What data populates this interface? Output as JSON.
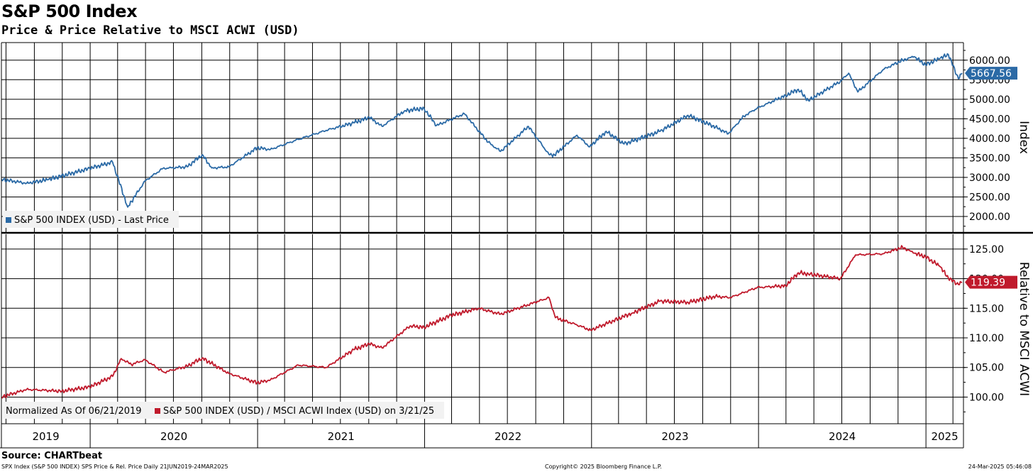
{
  "title": "S&P 500 Index",
  "subtitle": "Price & Price Relative to MSCI ACWI (USD)",
  "source": "Source: CHARTbeat",
  "footer": {
    "left": "SPX Index (S&P 500 INDEX) SPS Price & Rel. Price  Daily 21JUN2019-24MAR2025",
    "center": "Copyright© 2025 Bloomberg Finance L.P.",
    "right": "24-Mar-2025 05:46:08"
  },
  "colors": {
    "price": "#2b6aa6",
    "relative": "#c01a2c",
    "grid": "#000000"
  },
  "chart_data": [
    {
      "type": "line",
      "panel": "top",
      "ylabel": "Index",
      "ylim": [
        1600,
        6450
      ],
      "yticks": [
        2000,
        2500,
        3000,
        3500,
        4000,
        4500,
        5000,
        5500,
        6000
      ],
      "ytick_labels": [
        "2000.00",
        "2500.00",
        "3000.00",
        "3500.00",
        "4000.00",
        "4500.00",
        "5000.00",
        "5500.00",
        "6000.00"
      ],
      "legend": "S&P 500 INDEX (USD) - Last Price",
      "last_value_label": "5667.56",
      "last_value": 5667.56,
      "x": [
        "2019-06-21",
        "2019-08-15",
        "2019-10-01",
        "2019-12-31",
        "2020-02-19",
        "2020-03-23",
        "2020-04-30",
        "2020-06-08",
        "2020-07-31",
        "2020-09-02",
        "2020-09-23",
        "2020-10-30",
        "2020-12-31",
        "2021-01-29",
        "2021-03-31",
        "2021-05-31",
        "2021-07-30",
        "2021-09-02",
        "2021-09-30",
        "2021-11-18",
        "2021-12-31",
        "2022-01-27",
        "2022-03-29",
        "2022-05-20",
        "2022-06-16",
        "2022-08-16",
        "2022-09-30",
        "2022-10-12",
        "2022-11-30",
        "2022-12-28",
        "2023-02-02",
        "2023-03-13",
        "2023-05-31",
        "2023-07-31",
        "2023-09-29",
        "2023-10-27",
        "2023-11-30",
        "2023-12-29",
        "2024-02-29",
        "2024-03-28",
        "2024-04-19",
        "2024-06-28",
        "2024-07-16",
        "2024-08-05",
        "2024-09-30",
        "2024-11-11",
        "2024-12-06",
        "2024-12-31",
        "2025-01-31",
        "2025-02-19",
        "2025-03-13",
        "2025-03-21"
      ],
      "y": [
        2950,
        2850,
        2940,
        3230,
        3390,
        2240,
        2910,
        3230,
        3270,
        3580,
        3240,
        3270,
        3756,
        3714,
        3973,
        4204,
        4395,
        4536,
        4307,
        4704,
        4766,
        4326,
        4630,
        3900,
        3666,
        4305,
        3585,
        3577,
        4080,
        3783,
        4180,
        3855,
        4180,
        4589,
        4288,
        4117,
        4567,
        4770,
        5096,
        5254,
        4967,
        5460,
        5667,
        5186,
        5762,
        6001,
        6090,
        5881,
        6040,
        6144,
        5521,
        5667.56
      ]
    },
    {
      "type": "line",
      "panel": "bottom",
      "ylabel": "Relative to MSCI ACWI",
      "ylim": [
        95.5,
        127.5
      ],
      "yticks": [
        100,
        105,
        110,
        115,
        120,
        125
      ],
      "ytick_labels": [
        "100.00",
        "105.00",
        "110.00",
        "115.00",
        "120.00",
        "125.00"
      ],
      "legend_prefix": "Normalized As Of 06/21/2019",
      "legend": "S&P 500 INDEX (USD) / MSCI ACWI Index (USD) on 3/21/25",
      "last_value_label": "119.39",
      "last_value": 119.39,
      "x": [
        "2019-06-21",
        "2019-08-15",
        "2019-10-31",
        "2019-12-31",
        "2020-02-19",
        "2020-03-09",
        "2020-03-31",
        "2020-04-30",
        "2020-06-10",
        "2020-07-31",
        "2020-09-02",
        "2020-10-30",
        "2020-12-31",
        "2021-01-29",
        "2021-03-31",
        "2021-05-31",
        "2021-07-30",
        "2021-09-02",
        "2021-09-30",
        "2021-11-30",
        "2021-12-31",
        "2022-02-28",
        "2022-04-29",
        "2022-06-16",
        "2022-08-31",
        "2022-09-30",
        "2022-10-14",
        "2022-11-30",
        "2022-12-30",
        "2023-03-31",
        "2023-05-31",
        "2023-07-31",
        "2023-09-29",
        "2023-10-31",
        "2023-12-29",
        "2024-02-29",
        "2024-03-28",
        "2024-04-19",
        "2024-06-28",
        "2024-07-31",
        "2024-09-30",
        "2024-11-11",
        "2024-12-06",
        "2024-12-31",
        "2025-01-31",
        "2025-02-19",
        "2025-03-13",
        "2025-03-21"
      ],
      "y": [
        100,
        101.3,
        101,
        101.7,
        103.5,
        106.5,
        105.5,
        106.3,
        104.2,
        105.2,
        106.6,
        104,
        102.4,
        102.9,
        105.4,
        105,
        108,
        109,
        108.3,
        112,
        111.8,
        113.8,
        115,
        114,
        116,
        116.8,
        113.4,
        112.2,
        111.3,
        114.2,
        116.2,
        116,
        117,
        116.8,
        118.5,
        118.8,
        121,
        120.8,
        120,
        124,
        124.2,
        125.3,
        124.3,
        123.7,
        122.1,
        120.1,
        119,
        119.39
      ]
    }
  ],
  "x_axis": {
    "labels": [
      "2019",
      "2020",
      "2021",
      "2022",
      "2023",
      "2024",
      "2025"
    ]
  }
}
